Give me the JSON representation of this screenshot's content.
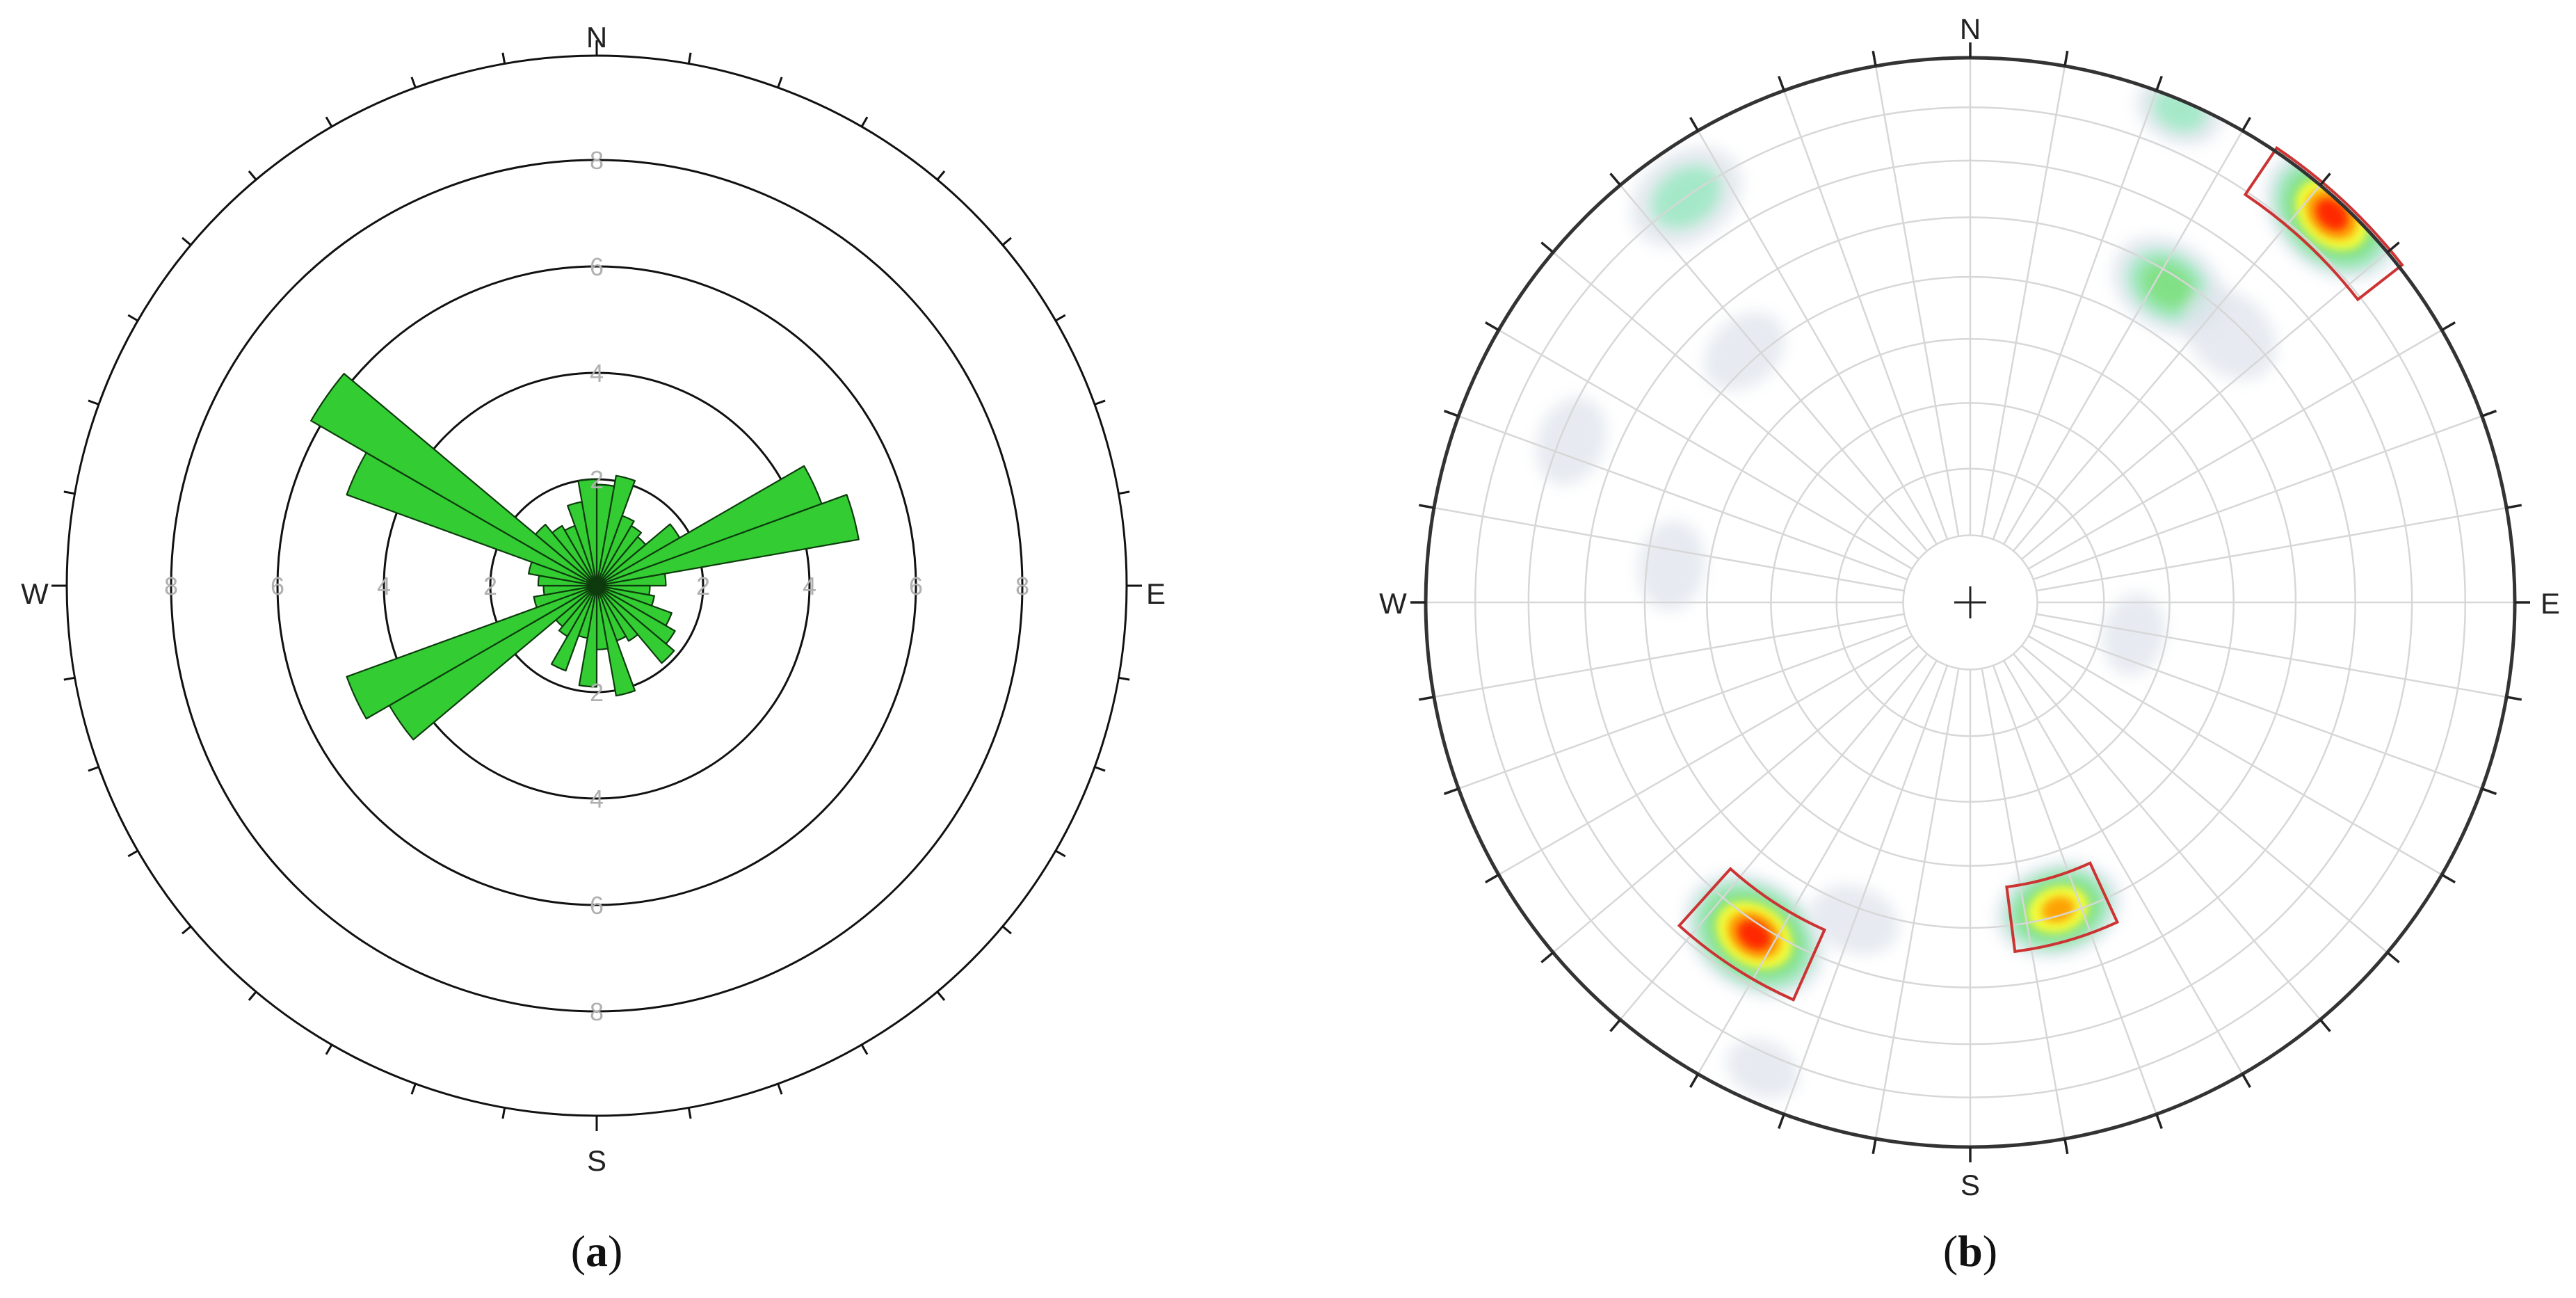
{
  "chart_data": [
    {
      "type": "rose",
      "caption": "a",
      "compass": {
        "N": "N",
        "E": "E",
        "S": "S",
        "W": "W"
      },
      "ring_values": [
        2,
        4,
        6,
        8
      ],
      "ring_labels": [
        "2",
        "4",
        "6",
        "8"
      ],
      "bin_width_deg": 10,
      "bar_color": "#33cc33",
      "petals": [
        {
          "azimuth": 5,
          "value": 1.9
        },
        {
          "azimuth": 15,
          "value": 2.1
        },
        {
          "azimuth": 25,
          "value": 1.4
        },
        {
          "azimuth": 35,
          "value": 1.3
        },
        {
          "azimuth": 45,
          "value": 1.2
        },
        {
          "azimuth": 55,
          "value": 1.8
        },
        {
          "azimuth": 65,
          "value": 4.5
        },
        {
          "azimuth": 75,
          "value": 5.0
        },
        {
          "azimuth": 85,
          "value": 1.3
        },
        {
          "azimuth": 95,
          "value": 1.0
        },
        {
          "azimuth": 105,
          "value": 1.1
        },
        {
          "azimuth": 115,
          "value": 1.5
        },
        {
          "azimuth": 125,
          "value": 1.7
        },
        {
          "azimuth": 135,
          "value": 1.9
        },
        {
          "azimuth": 145,
          "value": 1.2
        },
        {
          "azimuth": 155,
          "value": 1.1
        },
        {
          "azimuth": 165,
          "value": 2.1
        },
        {
          "azimuth": 175,
          "value": 1.2
        },
        {
          "azimuth": 185,
          "value": 1.9
        },
        {
          "azimuth": 195,
          "value": 1.0
        },
        {
          "azimuth": 205,
          "value": 1.7
        },
        {
          "azimuth": 215,
          "value": 1.1
        },
        {
          "azimuth": 225,
          "value": 1.0
        },
        {
          "azimuth": 235,
          "value": 4.5
        },
        {
          "azimuth": 245,
          "value": 5.0
        },
        {
          "azimuth": 255,
          "value": 1.2
        },
        {
          "azimuth": 265,
          "value": 1.0
        },
        {
          "azimuth": 275,
          "value": 1.1
        },
        {
          "azimuth": 285,
          "value": 1.3
        },
        {
          "azimuth": 295,
          "value": 5.0
        },
        {
          "azimuth": 305,
          "value": 6.2
        },
        {
          "azimuth": 315,
          "value": 1.5
        },
        {
          "azimuth": 325,
          "value": 1.3
        },
        {
          "azimuth": 335,
          "value": 1.2
        },
        {
          "azimuth": 345,
          "value": 1.6
        },
        {
          "azimuth": 355,
          "value": 2.0
        }
      ]
    },
    {
      "type": "stereonet-density",
      "caption": "b",
      "compass": {
        "N": "N",
        "E": "E",
        "S": "S",
        "W": "W"
      },
      "grid": "polar",
      "palette": {
        "low": "#dfe4ec",
        "mid": "#9ee8c4",
        "green": "#7ee07e",
        "yellow": "#ffff33",
        "orange": "#ff9900",
        "red": "#ff1a00",
        "outline": "#cc3333"
      },
      "concentrations": [
        {
          "trend": 43,
          "plunge": 3,
          "peak": "red",
          "spread": 1.0,
          "window": true
        },
        {
          "trend": 213,
          "plunge": 28,
          "peak": "red",
          "spread": 1.0,
          "window": true
        },
        {
          "trend": 164,
          "plunge": 41,
          "peak": "orange",
          "spread": 0.85,
          "window": true
        },
        {
          "trend": 32,
          "plunge": 32,
          "peak": "green",
          "spread": 0.8,
          "window": false
        },
        {
          "trend": 325,
          "plunge": 10,
          "peak": "mid",
          "spread": 0.8,
          "window": false
        },
        {
          "trend": 23,
          "plunge": 2,
          "peak": "mid",
          "spread": 0.6,
          "window": false
        },
        {
          "trend": 44,
          "plunge": 32,
          "peak": "low",
          "spread": 0.7,
          "window": false
        },
        {
          "trend": 318,
          "plunge": 38,
          "peak": "low",
          "spread": 0.6,
          "window": false
        },
        {
          "trend": 292,
          "plunge": 22,
          "peak": "low",
          "spread": 0.6,
          "window": false
        },
        {
          "trend": 277,
          "plunge": 44,
          "peak": "low",
          "spread": 0.6,
          "window": false
        },
        {
          "trend": 101,
          "plunge": 65,
          "peak": "low",
          "spread": 0.55,
          "window": false
        },
        {
          "trend": 200,
          "plunge": 38,
          "peak": "low",
          "spread": 0.6,
          "window": false
        },
        {
          "trend": 204,
          "plunge": 7,
          "peak": "low",
          "spread": 0.5,
          "window": false
        }
      ]
    }
  ]
}
